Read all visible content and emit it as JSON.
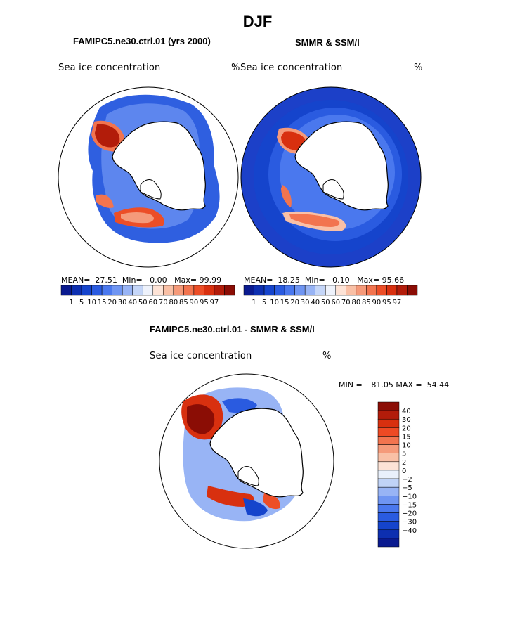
{
  "figure_title": "DJF",
  "panels": [
    {
      "title": "FAMIPC5.ne30.ctrl.01 (yrs 2000)",
      "label_left": "Sea ice concentration",
      "label_right": "%",
      "stats": {
        "mean_label": "MEAN=",
        "mean": "27.51",
        "min_label": "Min=",
        "min": "0.00",
        "max_label": "Max=",
        "max": "99.99"
      }
    },
    {
      "title": "SMMR & SSM/I",
      "label_left": "Sea ice concentration",
      "label_right": "%",
      "stats": {
        "mean_label": "MEAN=",
        "mean": "18.25",
        "min_label": "Min=",
        "min": "0.10",
        "max_label": "Max=",
        "max": "95.66"
      }
    },
    {
      "title": "FAMIPC5.ne30.ctrl.01 - SMMR & SSM/I",
      "label_left": "Sea ice concentration",
      "label_right": "%",
      "minmax": "MIN = −81.05 MAX =  54.44"
    }
  ],
  "abs_colorbar": {
    "ticks": [
      "1",
      "5",
      "10",
      "15",
      "20",
      "30",
      "40",
      "50",
      "60",
      "70",
      "80",
      "85",
      "90",
      "95",
      "97"
    ],
    "colors": [
      "#0a1a8f",
      "#0d2fb0",
      "#1544cc",
      "#2a5be0",
      "#4a78ee",
      "#6f95f2",
      "#98b4f5",
      "#c5d6f8",
      "#eef2fb",
      "#fde3d6",
      "#f9c0a6",
      "#f59a7a",
      "#f2744f",
      "#ec4e27",
      "#d8300f",
      "#b21c0a",
      "#8b0d05"
    ]
  },
  "diff_colorbar": {
    "ticks": [
      "40",
      "30",
      "20",
      "15",
      "10",
      "5",
      "2",
      "0",
      "−2",
      "−5",
      "−10",
      "−15",
      "−20",
      "−30",
      "−40"
    ],
    "colors": [
      "#8b0d05",
      "#b21c0a",
      "#d8300f",
      "#ee4a24",
      "#f2744f",
      "#f59a7a",
      "#f9c0a6",
      "#fde3d6",
      "#e9f0fb",
      "#c0d3f7",
      "#98b4f5",
      "#6f95f2",
      "#4a78ee",
      "#2a5be0",
      "#1544cc",
      "#0d2fb0",
      "#0a1a8f"
    ]
  }
}
